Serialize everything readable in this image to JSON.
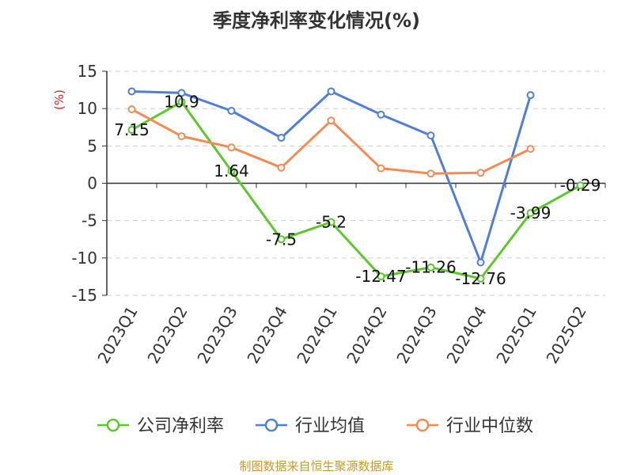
{
  "chart_data": {
    "type": "line",
    "title": "季度净利率变化情况(%)",
    "ylabel": "(%)",
    "xlabel": "",
    "categories": [
      "2023Q1",
      "2023Q2",
      "2023Q3",
      "2023Q4",
      "2024Q1",
      "2024Q2",
      "2024Q3",
      "2024Q4",
      "2025Q1",
      "2025Q2"
    ],
    "yticks": [
      "15",
      "10",
      "5",
      "0",
      "-5",
      "-10",
      "-15"
    ],
    "ylim": [
      -15,
      15
    ],
    "grid": "horizontal dashed",
    "legend_position": "bottom",
    "series": [
      {
        "name": "公司净利率",
        "color": "#5dc72b",
        "values": [
          7.15,
          10.9,
          1.64,
          -7.5,
          -5.2,
          -12.47,
          -11.26,
          -12.76,
          -3.99,
          -0.29
        ],
        "labels": [
          "7.15",
          "10.9",
          "1.64",
          "-7.5",
          "-5.2",
          "-12.47",
          "-11.26",
          "-12.76",
          "-3.99",
          "-0.29"
        ]
      },
      {
        "name": "行业均值",
        "color": "#4f7fd8",
        "values": [
          12.3,
          12.1,
          9.7,
          6.1,
          12.3,
          9.2,
          6.4,
          -10.6,
          11.8,
          null
        ]
      },
      {
        "name": "行业中位数",
        "color": "#f58b54",
        "values": [
          9.9,
          6.3,
          4.8,
          2.1,
          8.4,
          2.0,
          1.3,
          1.4,
          4.6,
          null
        ]
      }
    ]
  },
  "source": "制图数据来自恒生聚源数据库"
}
